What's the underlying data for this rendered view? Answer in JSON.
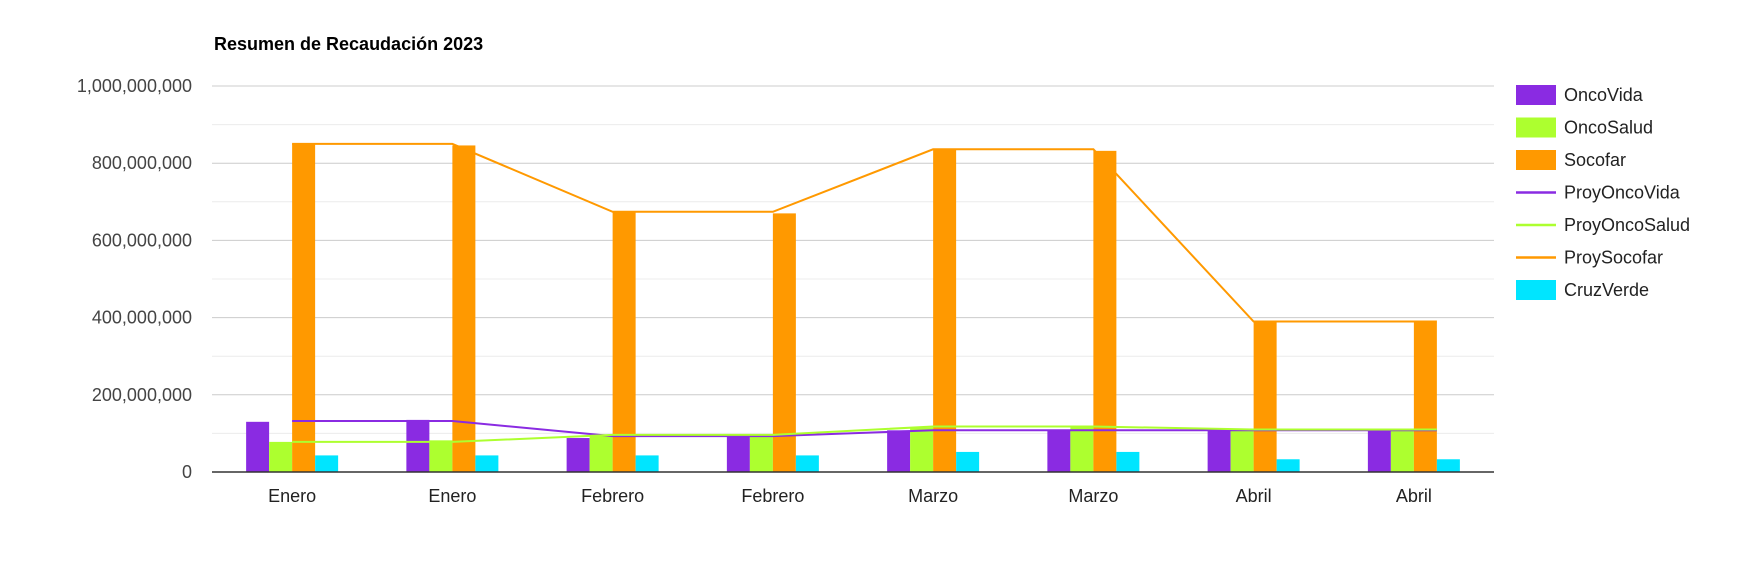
{
  "chart_data": {
    "type": "bar",
    "title": "Resumen de Recaudación 2023",
    "xlabel": "",
    "ylabel": "",
    "ylim": [
      0,
      1000000000
    ],
    "yticks": [
      0,
      200000000,
      400000000,
      600000000,
      800000000,
      1000000000
    ],
    "ytick_labels": [
      "0",
      "200,000,000",
      "400,000,000",
      "600,000,000",
      "800,000,000",
      "1,000,000,000"
    ],
    "grid": true,
    "legend_position": "right",
    "categories": [
      "Enero",
      "Enero",
      "Febrero",
      "Febrero",
      "Marzo",
      "Marzo",
      "Abril",
      "Abril"
    ],
    "bar_series": [
      {
        "name": "OncoVida",
        "color": "#8a2be2",
        "values": [
          130000000,
          135000000,
          88000000,
          93000000,
          108000000,
          110000000,
          108000000,
          108000000
        ]
      },
      {
        "name": "OncoSalud",
        "color": "#adff2f",
        "values": [
          78000000,
          82000000,
          96000000,
          94000000,
          115000000,
          118000000,
          110000000,
          110000000
        ]
      },
      {
        "name": "Socofar",
        "color": "#ff9900",
        "values": [
          850000000,
          846000000,
          674000000,
          670000000,
          836000000,
          832000000,
          390000000,
          388000000
        ]
      },
      {
        "name": "CruzVerde",
        "color": "#00e5ff",
        "values": [
          43000000,
          43000000,
          43000000,
          43000000,
          52000000,
          52000000,
          33000000,
          33000000
        ]
      }
    ],
    "line_series": [
      {
        "name": "ProyOncoVida",
        "color": "#8a2be2",
        "values": [
          132000000,
          132000000,
          93000000,
          93000000,
          108000000,
          108000000,
          108000000,
          108000000
        ]
      },
      {
        "name": "ProyOncoSalud",
        "color": "#adff2f",
        "values": [
          78000000,
          78000000,
          96000000,
          96000000,
          118000000,
          118000000,
          110000000,
          110000000
        ]
      },
      {
        "name": "ProySocofar",
        "color": "#ff9900",
        "values": [
          850000000,
          850000000,
          674000000,
          674000000,
          836000000,
          836000000,
          390000000,
          390000000
        ]
      }
    ],
    "legend_order": [
      "OncoVida",
      "OncoSalud",
      "Socofar",
      "ProyOncoVida",
      "ProyOncoSalud",
      "ProySocofar",
      "CruzVerde"
    ]
  }
}
